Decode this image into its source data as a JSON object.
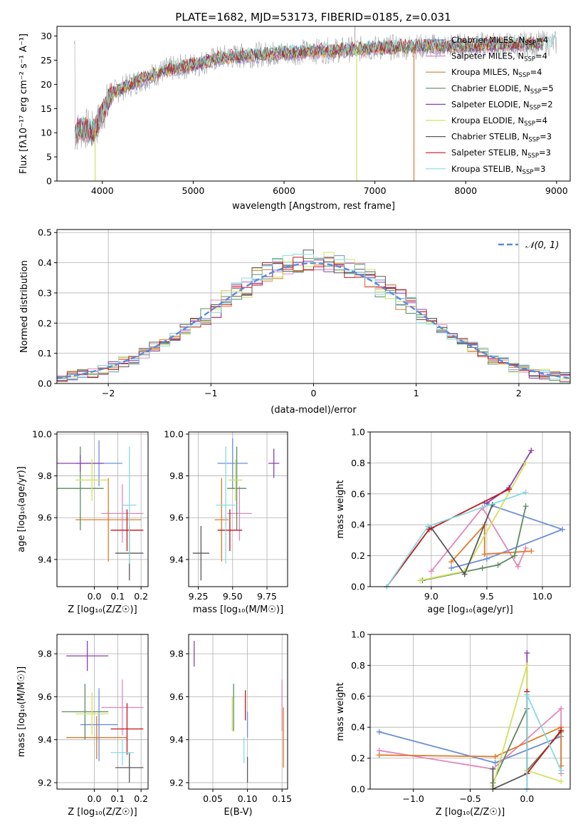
{
  "figure": {
    "title": "PLATE=1682, MJD=53173, FIBERID=0185, z=0.031"
  },
  "models": [
    {
      "label": "Chabrier MILES, N",
      "sub": "SSP",
      "eq": "=4",
      "color": "#6a8fd8"
    },
    {
      "label": "Salpeter MILES, N",
      "sub": "SSP",
      "eq": "=4",
      "color": "#e486b9"
    },
    {
      "label": "Kroupa MILES, N",
      "sub": "SSP",
      "eq": "=4",
      "color": "#dd7a2c"
    },
    {
      "label": "Chabrier ELODIE, N",
      "sub": "SSP",
      "eq": "=5",
      "color": "#5c8a60"
    },
    {
      "label": "Salpeter ELODIE, N",
      "sub": "SSP",
      "eq": "=2",
      "color": "#8b3fae"
    },
    {
      "label": "Kroupa ELODIE, N",
      "sub": "SSP",
      "eq": "=4",
      "color": "#d0e25a"
    },
    {
      "label": "Chabrier STELIB, N",
      "sub": "SSP",
      "eq": "=3",
      "color": "#595959"
    },
    {
      "label": "Salpeter STELIB, N",
      "sub": "SSP",
      "eq": "=3",
      "color": "#c0171c"
    },
    {
      "label": "Kroupa STELIB, N",
      "sub": "SSP",
      "eq": "=3",
      "color": "#85dbe0"
    }
  ],
  "chart_data": [
    {
      "id": "spectrum",
      "type": "line",
      "xlabel": "wavelength [Angstrom, rest frame]",
      "ylabel": "Flux [fλ10⁻¹⁷ erg cm⁻² s⁻¹ A⁻¹]",
      "xlim": [
        3500,
        9150
      ],
      "ylim": [
        0,
        32
      ],
      "xticks": [
        "4000",
        "5000",
        "6000",
        "7000",
        "8000",
        "9000"
      ],
      "yticks": [
        "0",
        "5",
        "10",
        "15",
        "20",
        "25",
        "30"
      ],
      "grid": false,
      "legend": "top-right",
      "continuum": {
        "x": [
          3700,
          3800,
          3900,
          4000,
          4100,
          4300,
          4500,
          4700,
          5000,
          5300,
          5600,
          6000,
          6500,
          7000,
          7400,
          8000,
          8500,
          9000
        ],
        "y": [
          10,
          11,
          10,
          14,
          18,
          20,
          21.5,
          23,
          24,
          25.5,
          26,
          26.5,
          27,
          27.5,
          27.8,
          28,
          28.2,
          28.5
        ]
      },
      "observed_color": "#b0b0b0"
    },
    {
      "id": "residuals",
      "type": "histogram",
      "xlabel": "(data-model)/error",
      "ylabel": "Normed distribution",
      "xlim": [
        -2.5,
        2.5
      ],
      "ylim": [
        0,
        0.51
      ],
      "xticks": [
        "−2",
        "−1",
        "0",
        "1",
        "2"
      ],
      "yticks": [
        "0.0",
        "0.1",
        "0.2",
        "0.3",
        "0.4",
        "0.5"
      ],
      "grid": true,
      "legend": "top-right",
      "reference": {
        "label": "𝒩(0, 1)",
        "color": "#5b8ad6",
        "mean": 0,
        "sigma": 1
      },
      "bin_edges": [
        -2.5,
        -2.4,
        -2.3,
        -2.2,
        -2.1,
        -2.0,
        -1.9,
        -1.8,
        -1.7,
        -1.6,
        -1.5,
        -1.4,
        -1.3,
        -1.2,
        -1.1,
        -1.0,
        -0.9,
        -0.8,
        -0.7,
        -0.6,
        -0.5,
        -0.4,
        -0.3,
        -0.2,
        -0.1,
        0.0,
        0.1,
        0.2,
        0.3,
        0.4,
        0.5,
        0.6,
        0.7,
        0.8,
        0.9,
        1.0,
        1.1,
        1.2,
        1.3,
        1.4,
        1.5,
        1.6,
        1.7,
        1.8,
        1.9,
        2.0,
        2.1,
        2.2,
        2.3,
        2.4,
        2.5
      ],
      "density": [
        0.02,
        0.025,
        0.03,
        0.035,
        0.045,
        0.055,
        0.07,
        0.08,
        0.1,
        0.12,
        0.14,
        0.16,
        0.18,
        0.2,
        0.23,
        0.25,
        0.28,
        0.3,
        0.32,
        0.35,
        0.37,
        0.38,
        0.39,
        0.4,
        0.41,
        0.41,
        0.4,
        0.39,
        0.38,
        0.37,
        0.35,
        0.32,
        0.3,
        0.28,
        0.25,
        0.23,
        0.2,
        0.18,
        0.16,
        0.14,
        0.12,
        0.1,
        0.08,
        0.07,
        0.055,
        0.045,
        0.035,
        0.03,
        0.025,
        0.02
      ]
    },
    {
      "id": "age_vs_Z",
      "type": "scatter",
      "xlabel": "Z [log₁₀(Z/Z☉)]",
      "ylabel": "age  [log₁₀(age/yr)]",
      "xlim": [
        -0.16,
        0.23
      ],
      "ylim": [
        9.27,
        10.01
      ],
      "xticks": [
        {
          "v": 0.0,
          "t": "0.0"
        },
        {
          "v": 0.1,
          "t": "0.1"
        },
        {
          "v": 0.2,
          "t": "0.2"
        }
      ],
      "yticks": [
        {
          "v": 9.4,
          "t": "9.4"
        },
        {
          "v": 9.6,
          "t": "9.6"
        },
        {
          "v": 9.8,
          "t": "9.8"
        },
        {
          "v": 10.0,
          "t": "10.0"
        }
      ],
      "points": [
        {
          "m": 0,
          "x": 0.02,
          "y": 9.86,
          "xerr": 0.1,
          "yerr": 0.11
        },
        {
          "m": 1,
          "x": 0.12,
          "y": 9.62,
          "xerr": 0.09,
          "yerr": 0.14
        },
        {
          "m": 2,
          "x": 0.06,
          "y": 9.59,
          "xerr": 0.14,
          "yerr": 0.2
        },
        {
          "m": 3,
          "x": -0.06,
          "y": 9.74,
          "xerr": 0.1,
          "yerr": 0.2
        },
        {
          "m": 4,
          "x": -0.06,
          "y": 9.86,
          "xerr": 0.1,
          "yerr": 0.04
        },
        {
          "m": 5,
          "x": -0.01,
          "y": 9.78,
          "xerr": 0.07,
          "yerr": 0.1
        },
        {
          "m": 6,
          "x": 0.15,
          "y": 9.43,
          "xerr": 0.06,
          "yerr": 0.13
        },
        {
          "m": 7,
          "x": 0.14,
          "y": 9.54,
          "xerr": 0.07,
          "yerr": 0.1
        },
        {
          "m": 8,
          "x": 0.15,
          "y": 9.66,
          "xerr": 0.03,
          "yerr": 0.28
        }
      ]
    },
    {
      "id": "age_vs_mass",
      "type": "scatter",
      "xlabel": "mass [log₁₀(M/M☉)]",
      "ylabel": "",
      "xlim": [
        9.18,
        9.9
      ],
      "ylim": [
        9.27,
        10.01
      ],
      "xticks": [
        {
          "v": 9.25,
          "t": "9.25"
        },
        {
          "v": 9.5,
          "t": "9.50"
        },
        {
          "v": 9.75,
          "t": "9.75"
        }
      ],
      "yticks": [
        {
          "v": 9.4,
          "t": "9.4"
        },
        {
          "v": 9.6,
          "t": "9.6"
        },
        {
          "v": 9.8,
          "t": "9.8"
        },
        {
          "v": 10.0,
          "t": "10.0"
        }
      ],
      "points": [
        {
          "m": 0,
          "x": 9.5,
          "y": 9.86,
          "xerr": 0.11,
          "yerr": 0.12
        },
        {
          "m": 1,
          "x": 9.55,
          "y": 9.62,
          "xerr": 0.09,
          "yerr": 0.13
        },
        {
          "m": 2,
          "x": 9.42,
          "y": 9.59,
          "xerr": 0.05,
          "yerr": 0.2
        },
        {
          "m": 3,
          "x": 9.53,
          "y": 9.74,
          "xerr": 0.07,
          "yerr": 0.2
        },
        {
          "m": 4,
          "x": 9.8,
          "y": 9.86,
          "xerr": 0.04,
          "yerr": 0.07
        },
        {
          "m": 5,
          "x": 9.52,
          "y": 9.78,
          "xerr": 0.05,
          "yerr": 0.1
        },
        {
          "m": 6,
          "x": 9.27,
          "y": 9.43,
          "xerr": 0.06,
          "yerr": 0.13
        },
        {
          "m": 7,
          "x": 9.48,
          "y": 9.54,
          "xerr": 0.09,
          "yerr": 0.1
        },
        {
          "m": 8,
          "x": 9.45,
          "y": 9.66,
          "xerr": 0.07,
          "yerr": 0.28
        }
      ]
    },
    {
      "id": "weight_vs_age",
      "type": "line",
      "xlabel": "age  [log₁₀(age/yr)]",
      "ylabel": "mass weight",
      "xlim": [
        8.45,
        10.25
      ],
      "ylim": [
        0,
        1.0
      ],
      "xticks": [
        {
          "v": 9.0,
          "t": "9.0"
        },
        {
          "v": 9.5,
          "t": "9.5"
        },
        {
          "v": 10.0,
          "t": "10.0"
        }
      ],
      "yticks": [
        {
          "v": 0.0,
          "t": "0.0"
        },
        {
          "v": 0.2,
          "t": "0.2"
        },
        {
          "v": 0.4,
          "t": "0.4"
        },
        {
          "v": 0.6,
          "t": "0.6"
        },
        {
          "v": 0.8,
          "t": "0.8"
        },
        {
          "v": 1.0,
          "t": "1.0"
        }
      ],
      "series": [
        {
          "m": 0,
          "x": [
            9.18,
            9.5,
            10.18,
            9.48
          ],
          "y": [
            0.12,
            0.18,
            0.37,
            0.54
          ]
        },
        {
          "m": 1,
          "x": [
            9.0,
            9.46,
            9.78,
            9.85
          ],
          "y": [
            0.1,
            0.51,
            0.13,
            0.25
          ]
        },
        {
          "m": 2,
          "x": [
            9.18,
            9.48,
            9.48,
            9.9
          ],
          "y": [
            0.16,
            0.4,
            0.21,
            0.23
          ]
        },
        {
          "m": 3,
          "x": [
            8.92,
            9.46,
            9.6,
            9.75,
            9.85
          ],
          "y": [
            0.04,
            0.12,
            0.14,
            0.2,
            0.52
          ]
        },
        {
          "m": 4,
          "x": [
            9.5,
            9.7,
            9.9
          ],
          "y": [
            0.54,
            0.64,
            0.88
          ]
        },
        {
          "m": 5,
          "x": [
            8.9,
            9.3,
            9.85
          ],
          "y": [
            0.04,
            0.1,
            0.8
          ]
        },
        {
          "m": 6,
          "x": [
            9.0,
            9.3,
            9.55
          ],
          "y": [
            0.38,
            0.08,
            0.53
          ]
        },
        {
          "m": 7,
          "x": [
            8.6,
            8.98,
            9.7
          ],
          "y": [
            0.0,
            0.37,
            0.63
          ]
        },
        {
          "m": 8,
          "x": [
            8.6,
            8.97,
            9.85
          ],
          "y": [
            0.0,
            0.39,
            0.61
          ]
        }
      ]
    },
    {
      "id": "mass_vs_Z",
      "type": "scatter",
      "xlabel": "Z [log₁₀(Z/Z☉)]",
      "ylabel": "mass [log₁₀(M/M☉)]",
      "xlim": [
        -0.16,
        0.23
      ],
      "ylim": [
        9.17,
        9.89
      ],
      "xticks": [
        {
          "v": 0.0,
          "t": "0.0"
        },
        {
          "v": 0.1,
          "t": "0.1"
        },
        {
          "v": 0.2,
          "t": "0.2"
        }
      ],
      "yticks": [
        {
          "v": 9.2,
          "t": "9.2"
        },
        {
          "v": 9.4,
          "t": "9.4"
        },
        {
          "v": 9.6,
          "t": "9.6"
        },
        {
          "v": 9.8,
          "t": "9.8"
        }
      ],
      "points": [
        {
          "m": 0,
          "x": 0.02,
          "y": 9.47,
          "xerr": 0.08,
          "yerr": 0.17
        },
        {
          "m": 1,
          "x": 0.12,
          "y": 9.55,
          "xerr": 0.09,
          "yerr": 0.13
        },
        {
          "m": 2,
          "x": 0.01,
          "y": 9.41,
          "xerr": 0.13,
          "yerr": 0.1
        },
        {
          "m": 3,
          "x": -0.04,
          "y": 9.53,
          "xerr": 0.1,
          "yerr": 0.13
        },
        {
          "m": 4,
          "x": -0.03,
          "y": 9.79,
          "xerr": 0.09,
          "yerr": 0.07
        },
        {
          "m": 5,
          "x": -0.01,
          "y": 9.52,
          "xerr": 0.07,
          "yerr": 0.1
        },
        {
          "m": 6,
          "x": 0.15,
          "y": 9.27,
          "xerr": 0.06,
          "yerr": 0.07
        },
        {
          "m": 7,
          "x": 0.14,
          "y": 9.45,
          "xerr": 0.07,
          "yerr": 0.12
        },
        {
          "m": 8,
          "x": 0.12,
          "y": 9.34,
          "xerr": 0.05,
          "yerr": 0.06
        }
      ]
    },
    {
      "id": "mass_vs_EBV",
      "type": "scatter",
      "xlabel": "E(B-V)",
      "ylabel": "",
      "xlim": [
        0.015,
        0.158
      ],
      "ylim": [
        9.17,
        9.89
      ],
      "xticks": [
        {
          "v": 0.05,
          "t": "0.05"
        },
        {
          "v": 0.1,
          "t": "0.10"
        },
        {
          "v": 0.15,
          "t": "0.15"
        }
      ],
      "yticks": [
        {
          "v": 9.2,
          "t": "9.2"
        },
        {
          "v": 9.4,
          "t": "9.4"
        },
        {
          "v": 9.6,
          "t": "9.6"
        },
        {
          "v": 9.8,
          "t": "9.8"
        }
      ],
      "points": [
        {
          "m": 0,
          "x": 0.1,
          "y": 9.47,
          "xerr": 0.0,
          "yerr": 0.06
        },
        {
          "m": 1,
          "x": 0.15,
          "y": 9.56,
          "xerr": 0.0,
          "yerr": 0.12
        },
        {
          "m": 2,
          "x": 0.152,
          "y": 9.41,
          "xerr": 0.0,
          "yerr": 0.14
        },
        {
          "m": 3,
          "x": 0.08,
          "y": 9.55,
          "xerr": 0.0,
          "yerr": 0.11
        },
        {
          "m": 4,
          "x": 0.023,
          "y": 9.8,
          "xerr": 0.0,
          "yerr": 0.06
        },
        {
          "m": 5,
          "x": 0.078,
          "y": 9.52,
          "xerr": 0.0,
          "yerr": 0.08
        },
        {
          "m": 6,
          "x": 0.1,
          "y": 9.26,
          "xerr": 0.0,
          "yerr": 0.06
        },
        {
          "m": 7,
          "x": 0.097,
          "y": 9.56,
          "xerr": 0.0,
          "yerr": 0.07
        },
        {
          "m": 8,
          "x": 0.095,
          "y": 9.35,
          "xerr": 0.0,
          "yerr": 0.06
        }
      ]
    },
    {
      "id": "weight_vs_Z",
      "type": "line",
      "xlabel": "Z [log₁₀(Z/Z☉)]",
      "ylabel": "mass weight",
      "xlim": [
        -1.38,
        0.38
      ],
      "ylim": [
        0,
        1.0
      ],
      "xticks": [
        {
          "v": -1.0,
          "t": "−1.0"
        },
        {
          "v": -0.5,
          "t": "−0.5"
        },
        {
          "v": 0.0,
          "t": "0.0"
        }
      ],
      "yticks": [
        {
          "v": 0.0,
          "t": "0.0"
        },
        {
          "v": 0.2,
          "t": "0.2"
        },
        {
          "v": 0.4,
          "t": "0.4"
        },
        {
          "v": 0.6,
          "t": "0.6"
        },
        {
          "v": 0.8,
          "t": "0.8"
        },
        {
          "v": 1.0,
          "t": "1.0"
        }
      ],
      "series": [
        {
          "m": 0,
          "x": [
            -1.3,
            -0.28,
            0.3
          ],
          "y": [
            0.37,
            0.17,
            0.34
          ]
        },
        {
          "m": 1,
          "x": [
            -1.3,
            -0.3,
            0.3,
            0.3
          ],
          "y": [
            0.25,
            0.13,
            0.52,
            0.1
          ]
        },
        {
          "m": 2,
          "x": [
            -1.3,
            -0.28,
            0.3,
            0.3
          ],
          "y": [
            0.22,
            0.21,
            0.4,
            0.15
          ]
        },
        {
          "m": 3,
          "x": [
            -0.3,
            0.0,
            0.0,
            0.3
          ],
          "y": [
            0.04,
            0.52,
            0.12,
            0.37
          ]
        },
        {
          "m": 4,
          "x": [
            0.0,
            0.0
          ],
          "y": [
            0.88,
            0.0
          ]
        },
        {
          "m": 5,
          "x": [
            -0.3,
            0.0,
            0.0,
            0.3
          ],
          "y": [
            0.02,
            0.8,
            0.12,
            0.05
          ]
        },
        {
          "m": 6,
          "x": [
            -0.3,
            -0.3,
            0.0
          ],
          "y": [
            0.13,
            0.0,
            0.1
          ]
        },
        {
          "m": 7,
          "x": [
            0.0,
            0.0,
            0.3
          ],
          "y": [
            0.63,
            0.1,
            0.38
          ]
        },
        {
          "m": 8,
          "x": [
            0.0,
            0.0,
            0.3
          ],
          "y": [
            0.0,
            0.61,
            0.12
          ]
        }
      ]
    }
  ]
}
